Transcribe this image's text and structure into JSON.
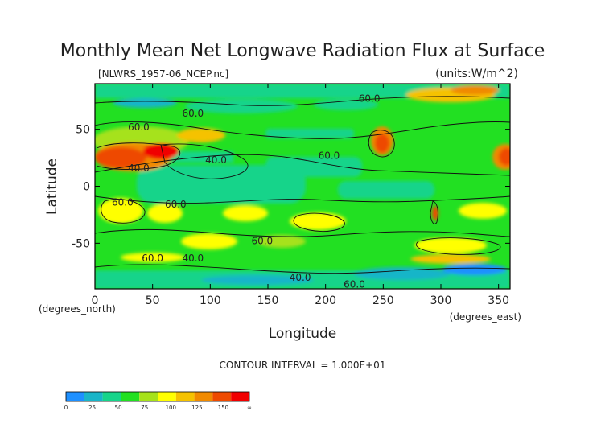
{
  "chart_data": {
    "type": "heatmap",
    "title": "Monthly Mean Net Longwave Radiation Flux at Surface",
    "file_label": "[NLWRS_1957-06_NCEP.nc]",
    "units_label": "(units:W/m^2)",
    "xlabel": "Longitude",
    "xunit_label": "(degrees_east)",
    "ylabel": "Latitude",
    "yunit_label": "(degrees_north)",
    "xlim": [
      0,
      360
    ],
    "ylim": [
      -90,
      90
    ],
    "x_ticks": [
      0,
      50,
      100,
      150,
      200,
      250,
      300,
      350
    ],
    "y_ticks": [
      50,
      0,
      -50
    ],
    "contour_interval_text": "CONTOUR INTERVAL = 1.000E+01",
    "contour_labels": [
      {
        "text": "60.0",
        "lon": 38,
        "lat": 52
      },
      {
        "text": "60.0",
        "lon": 85,
        "lat": 64
      },
      {
        "text": "60.0",
        "lon": 238,
        "lat": 77
      },
      {
        "text": "40.0",
        "lon": 105,
        "lat": 23
      },
      {
        "text": "60.0",
        "lon": 203,
        "lat": 27
      },
      {
        "text": "40.0",
        "lon": 38,
        "lat": 16
      },
      {
        "text": "60.0",
        "lon": 24,
        "lat": -14
      },
      {
        "text": "60.0",
        "lon": 70,
        "lat": -16
      },
      {
        "text": "60.0",
        "lon": 145,
        "lat": -48
      },
      {
        "text": "60.0",
        "lon": 50,
        "lat": -63
      },
      {
        "text": "40.0",
        "lon": 85,
        "lat": -63
      },
      {
        "text": "40.0",
        "lon": 178,
        "lat": -80
      },
      {
        "text": "60.0",
        "lon": 225,
        "lat": -86
      }
    ],
    "colorbar": {
      "tick_labels": [
        "0",
        "25",
        "50",
        "75",
        "100",
        "125",
        "150",
        "∞"
      ],
      "colors": [
        "#1e90ff",
        "#19b5c8",
        "#16d48a",
        "#22e022",
        "#a6e21a",
        "#ffff00",
        "#f5c200",
        "#f08a00",
        "#ee4a00",
        "#f00000"
      ]
    }
  }
}
